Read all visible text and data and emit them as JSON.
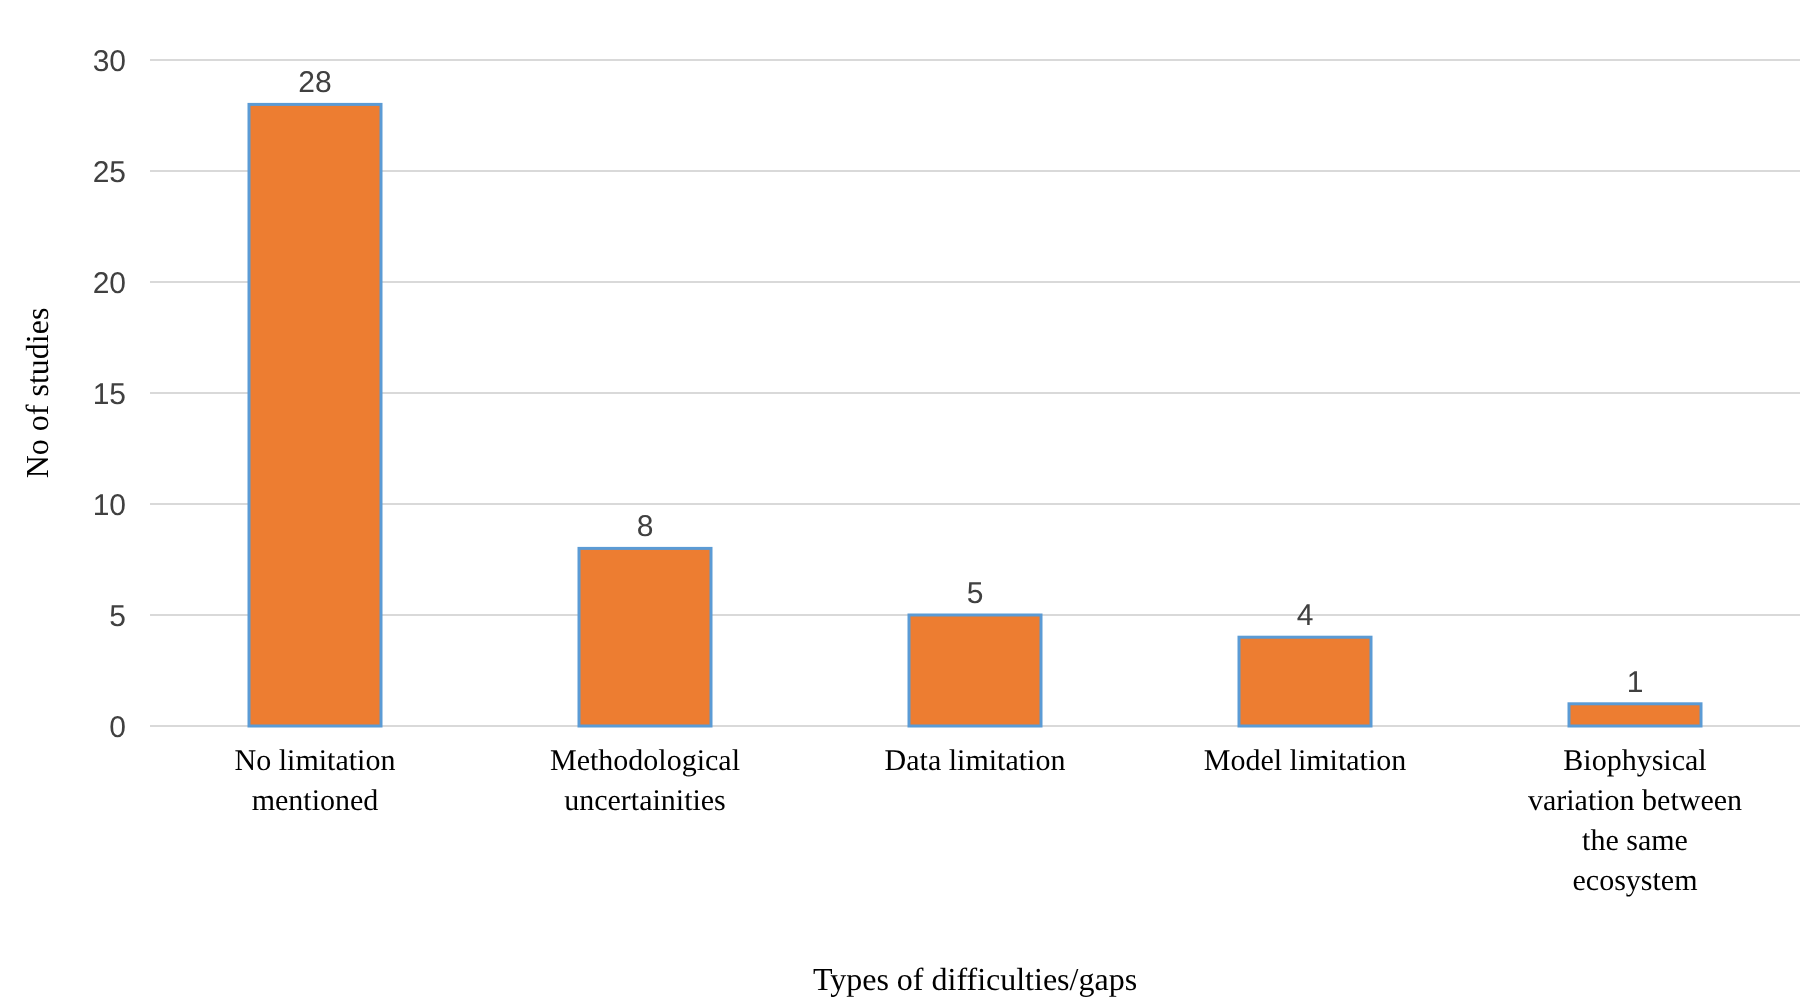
{
  "chart_data": {
    "type": "bar",
    "xlabel": "Types  of difficulties/gaps",
    "ylabel": "No of studies",
    "categories": [
      "No limitation mentioned",
      "Methodological uncertainities",
      "Data limitation",
      "Model limitation",
      "Biophysical variation between the same ecosystem"
    ],
    "values": [
      28,
      8,
      5,
      4,
      1
    ],
    "color": "#ed7d31",
    "data_labels": true,
    "ylim": [
      0,
      30
    ],
    "yticks": [
      0,
      5,
      10,
      15,
      20,
      25,
      30
    ],
    "grid": "y"
  }
}
